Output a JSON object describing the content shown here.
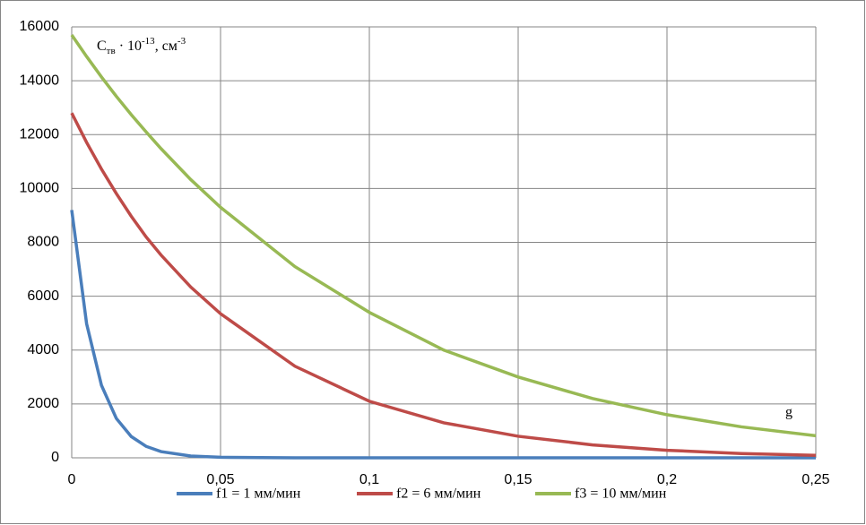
{
  "chart_data": {
    "type": "line",
    "ylabel": [
      "C",
      "тв",
      " · 10",
      "-13",
      ", см",
      "-3"
    ],
    "xlabel": "g",
    "x": [
      0,
      0.005,
      0.01,
      0.015,
      0.02,
      0.025,
      0.03,
      0.04,
      0.05,
      0.075,
      0.1,
      0.125,
      0.15,
      0.175,
      0.2,
      0.225,
      0.25
    ],
    "series": [
      {
        "name": "f1 = 1 мм/мин",
        "color": "#4a7ebb",
        "values": [
          9200,
          4980,
          2690,
          1460,
          790,
          425,
          230,
          67,
          20,
          1,
          0,
          0,
          0,
          0,
          0,
          0,
          0
        ]
      },
      {
        "name": "f2 = 6 мм/мин",
        "color": "#be4b48",
        "values": [
          12800,
          11710,
          10720,
          9810,
          8970,
          8200,
          7530,
          6340,
          5350,
          3400,
          2100,
          1300,
          800,
          480,
          280,
          160,
          90
        ]
      },
      {
        "name": "f3 = 10 мм/мин",
        "color": "#98b954",
        "values": [
          15700,
          14900,
          14140,
          13420,
          12740,
          12100,
          11480,
          10330,
          9300,
          7100,
          5400,
          4000,
          3000,
          2200,
          1600,
          1150,
          820
        ]
      }
    ],
    "xlim": [
      0,
      0.25
    ],
    "xticks": [
      0,
      {
        "value": 0.05,
        "label": "0,05"
      },
      {
        "value": 0.1,
        "label": "0,1"
      },
      {
        "value": 0.15,
        "label": "0,15"
      },
      {
        "value": 0.2,
        "label": "0,2"
      },
      {
        "value": 0.25,
        "label": "0,25"
      }
    ],
    "ylim": [
      0,
      16000
    ],
    "yticks": [
      0,
      2000,
      4000,
      6000,
      8000,
      10000,
      12000,
      14000,
      16000
    ],
    "grid": true,
    "legend": "bottom"
  }
}
